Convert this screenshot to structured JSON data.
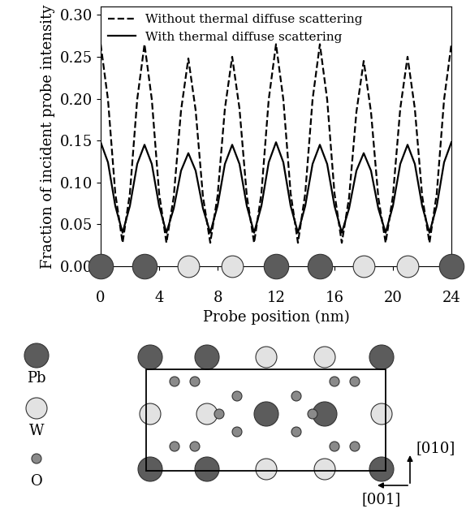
{
  "chart_data": {
    "type": "line",
    "x_label": "Probe position (nm)",
    "y_label": "Fraction of incident probe intensity",
    "xlim": [
      0,
      24
    ],
    "xticks": [
      0,
      4,
      8,
      12,
      16,
      20,
      24
    ],
    "ylim": [
      0,
      0.31
    ],
    "yticks": [
      {
        "value": 0,
        "label": "0.00"
      },
      {
        "value": 0.05,
        "label": "0.05"
      },
      {
        "value": 0.1,
        "label": "0.10"
      },
      {
        "value": 0.15,
        "label": "0.15"
      },
      {
        "value": 0.2,
        "label": "0.20"
      },
      {
        "value": 0.25,
        "label": "0.25"
      },
      {
        "value": 0.3,
        "label": "0.30"
      }
    ],
    "legend": "upper left",
    "x": [
      0,
      0.5,
      1,
      1.5,
      2,
      2.5,
      3,
      3.5,
      4,
      4.5,
      5,
      5.5,
      6,
      6.5,
      7,
      7.5,
      8,
      8.5,
      9,
      9.5,
      10,
      10.5,
      11,
      11.5,
      12,
      12.5,
      13,
      13.5,
      14,
      14.5,
      15,
      15.5,
      16,
      16.5,
      17,
      17.5,
      18,
      18.5,
      19,
      19.5,
      20,
      20.5,
      21,
      21.5,
      22,
      22.5,
      23,
      23.5,
      24
    ],
    "series": [
      {
        "name": "Without thermal diffuse scattering",
        "color": "#000000",
        "line_style": "dashed",
        "values": [
          0.265,
          0.199,
          0.087,
          0.028,
          0.087,
          0.199,
          0.265,
          0.199,
          0.087,
          0.028,
          0.083,
          0.186,
          0.248,
          0.186,
          0.083,
          0.028,
          0.084,
          0.188,
          0.25,
          0.188,
          0.084,
          0.028,
          0.087,
          0.199,
          0.265,
          0.199,
          0.087,
          0.028,
          0.087,
          0.199,
          0.265,
          0.199,
          0.087,
          0.028,
          0.082,
          0.184,
          0.245,
          0.184,
          0.082,
          0.028,
          0.084,
          0.188,
          0.25,
          0.188,
          0.084,
          0.028,
          0.087,
          0.199,
          0.265
        ]
      },
      {
        "name": "With thermal diffuse scattering",
        "color": "#000000",
        "line_style": "solid",
        "values": [
          0.148,
          0.124,
          0.072,
          0.04,
          0.072,
          0.122,
          0.145,
          0.122,
          0.072,
          0.04,
          0.069,
          0.114,
          0.135,
          0.114,
          0.069,
          0.04,
          0.072,
          0.122,
          0.145,
          0.122,
          0.072,
          0.04,
          0.072,
          0.124,
          0.148,
          0.124,
          0.072,
          0.04,
          0.072,
          0.122,
          0.145,
          0.122,
          0.072,
          0.04,
          0.069,
          0.114,
          0.135,
          0.114,
          0.069,
          0.04,
          0.072,
          0.122,
          0.145,
          0.122,
          0.072,
          0.04,
          0.072,
          0.124,
          0.148
        ]
      }
    ],
    "atoms": {
      "x": [
        0,
        3,
        6,
        9,
        12,
        15,
        18,
        21,
        24
      ],
      "species": [
        "Pb",
        "Pb",
        "W",
        "W",
        "Pb",
        "Pb",
        "W",
        "W",
        "Pb"
      ]
    }
  },
  "diagram": {
    "species": [
      {
        "name": "Pb",
        "color": "#5c5c5c"
      },
      {
        "name": "W",
        "color": "#e2e2e2"
      },
      {
        "name": "O",
        "color": "#8a8a8a"
      }
    ],
    "directions": [
      "[010]",
      "[001]"
    ]
  }
}
